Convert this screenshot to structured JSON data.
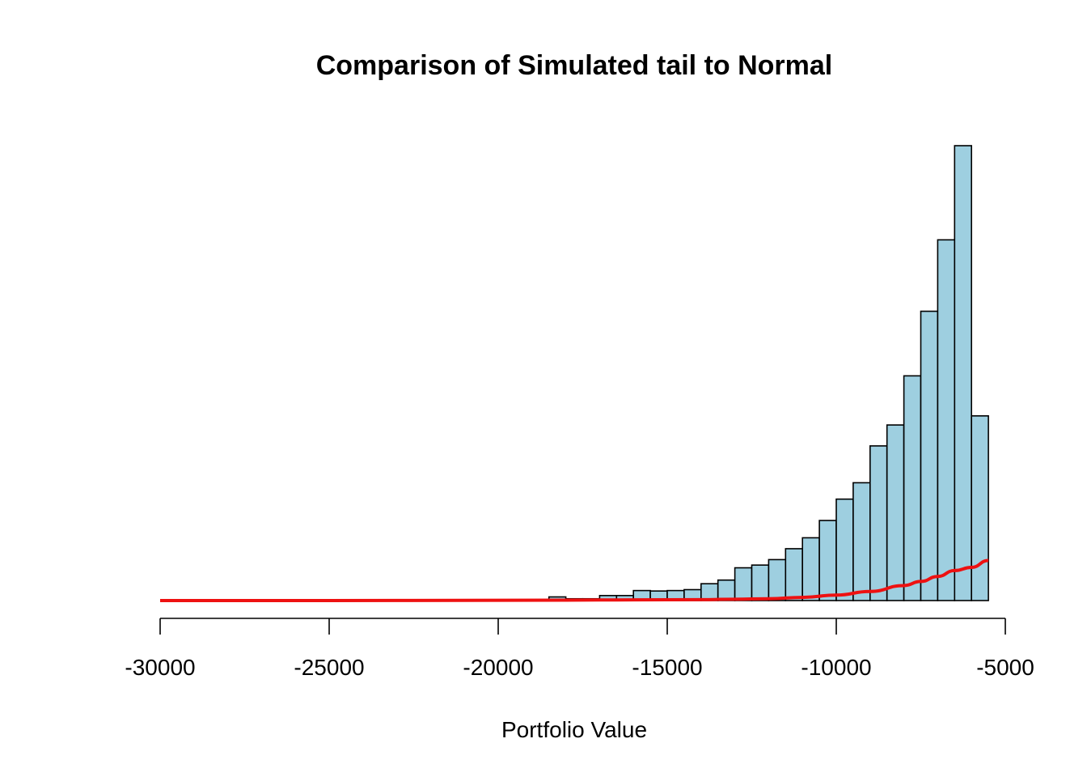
{
  "chart_data": {
    "type": "bar",
    "title": "Comparison of Simulated tail to Normal",
    "xlabel": "Portfolio Value",
    "ylabel": "",
    "xlim": [
      -30000,
      -5000
    ],
    "ylim": [
      0,
      1
    ],
    "x_ticks": [
      -30000,
      -25000,
      -20000,
      -15000,
      -10000,
      -5000
    ],
    "x_tick_labels": [
      "-30000",
      "-25000",
      "-20000",
      "-15000",
      "-10000",
      "-5000"
    ],
    "bin_edges": [
      -21000,
      -20500,
      -20000,
      -19500,
      -19000,
      -18500,
      -18000,
      -17500,
      -17000,
      -16500,
      -16000,
      -15500,
      -15000,
      -14500,
      -14000,
      -13500,
      -13000,
      -12500,
      -12000,
      -11500,
      -11000,
      -10500,
      -10000,
      -9500,
      -9000,
      -8500,
      -8000,
      -7500,
      -7000,
      -6500,
      -6000,
      -5500
    ],
    "values": [
      0.002,
      0.002,
      0.002,
      0.002,
      0.002,
      0.008,
      0.004,
      0.004,
      0.011,
      0.011,
      0.022,
      0.021,
      0.022,
      0.024,
      0.037,
      0.045,
      0.072,
      0.078,
      0.09,
      0.114,
      0.138,
      0.176,
      0.223,
      0.259,
      0.34,
      0.386,
      0.494,
      0.636,
      0.793,
      1.0,
      0.406
    ],
    "normal_curve": {
      "x": [
        -30000,
        -25000,
        -21000,
        -18000,
        -16000,
        -14000,
        -13000,
        -12000,
        -11000,
        -10000,
        -9000,
        -8000,
        -7500,
        -7000,
        -6500,
        -6000,
        -5500
      ],
      "y": [
        0,
        0,
        0.0005,
        0.001,
        0.0015,
        0.002,
        0.003,
        0.004,
        0.007,
        0.012,
        0.02,
        0.033,
        0.042,
        0.053,
        0.066,
        0.073,
        0.088
      ]
    },
    "colors": {
      "bars": "#9ecfe0",
      "bar_stroke": "#000000",
      "curve": "#ee1111"
    },
    "grid": false,
    "legend": "none"
  }
}
